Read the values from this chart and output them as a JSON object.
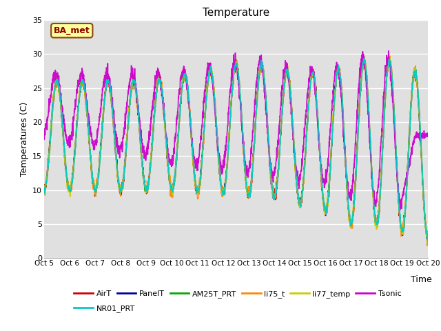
{
  "title": "Temperature",
  "xlabel": "Time",
  "ylabel": "Temperatures (C)",
  "annotation": "BA_met",
  "ylim": [
    0,
    35
  ],
  "xlim": [
    0,
    15
  ],
  "x_tick_labels": [
    "Oct 5",
    "Oct 6",
    "Oct 7",
    "Oct 8",
    "Oct 9",
    "Oct 10",
    "Oct 11",
    "Oct 12",
    "Oct 13",
    "Oct 14",
    "Oct 15",
    "Oct 16",
    "Oct 17",
    "Oct 18",
    "Oct 19",
    "Oct 20"
  ],
  "series_order": [
    "AirT",
    "PanelT",
    "AM25T_PRT",
    "li75_t",
    "li77_temp",
    "Tsonic",
    "NR01_PRT"
  ],
  "series": {
    "AirT": {
      "color": "#cc0000",
      "lw": 1.2
    },
    "PanelT": {
      "color": "#000099",
      "lw": 1.2
    },
    "AM25T_PRT": {
      "color": "#00aa00",
      "lw": 1.2
    },
    "li75_t": {
      "color": "#ff8800",
      "lw": 1.2
    },
    "li77_temp": {
      "color": "#cccc00",
      "lw": 1.2
    },
    "Tsonic": {
      "color": "#cc00cc",
      "lw": 1.2
    },
    "NR01_PRT": {
      "color": "#00cccc",
      "lw": 1.2
    }
  },
  "legend_row1": [
    "AirT",
    "PanelT",
    "AM25T_PRT",
    "li75_t",
    "li77_temp",
    "Tsonic"
  ],
  "legend_row2": [
    "NR01_PRT"
  ],
  "bg_color": "#e0e0e0",
  "grid_color": "#ffffff",
  "figsize": [
    6.4,
    4.8
  ],
  "dpi": 100
}
